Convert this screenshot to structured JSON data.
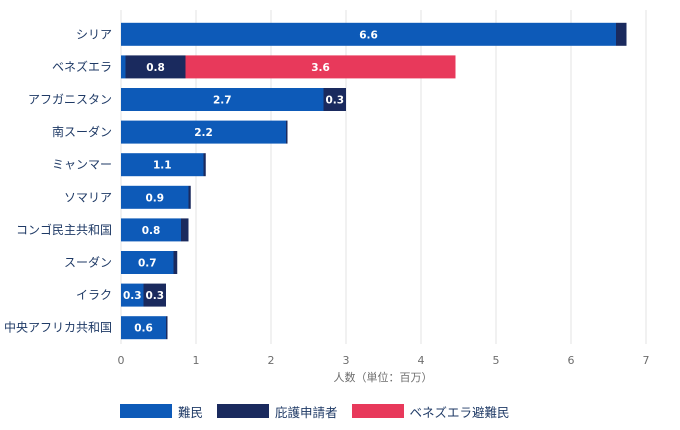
{
  "chart_data": {
    "type": "bar",
    "orientation": "horizontal",
    "stacked": true,
    "categories": [
      "シリア",
      "ベネズエラ",
      "アフガニスタン",
      "南スーダン",
      "ミャンマー",
      "ソマリア",
      "コンゴ民主共和国",
      "スーダン",
      "イラク",
      "中央アフリカ共和国"
    ],
    "series": [
      {
        "name": "難民",
        "color": "#0d5ab8",
        "values": [
          6.6,
          0.06,
          2.7,
          2.2,
          1.1,
          0.9,
          0.8,
          0.7,
          0.3,
          0.6
        ]
      },
      {
        "name": "庇護申請者",
        "color": "#1a2a5e",
        "values": [
          0.14,
          0.8,
          0.3,
          0.02,
          0.03,
          0.03,
          0.1,
          0.05,
          0.3,
          0.02
        ]
      },
      {
        "name": "ベネズエラ避難民",
        "color": "#e8395b",
        "values": [
          0,
          3.6,
          0,
          0,
          0,
          0,
          0,
          0,
          0,
          0
        ]
      }
    ],
    "data_labels": [
      [
        "6.6",
        "",
        ""
      ],
      [
        "",
        "0.8",
        "3.6"
      ],
      [
        "2.7",
        "0.3",
        ""
      ],
      [
        "2.2",
        "",
        ""
      ],
      [
        "1.1",
        "",
        ""
      ],
      [
        "0.9",
        "",
        ""
      ],
      [
        "0.8",
        "",
        ""
      ],
      [
        "0.7",
        "",
        ""
      ],
      [
        "0.3",
        "0.3",
        ""
      ],
      [
        "0.6",
        "",
        ""
      ]
    ],
    "xticks": [
      "0",
      "1",
      "2",
      "3",
      "4",
      "5",
      "6",
      "7"
    ],
    "xlim": [
      0,
      7
    ],
    "xlabel": "人数（単位：百万）",
    "ylabel": "",
    "title": "",
    "grid": true,
    "legend_position": "bottom-left"
  },
  "colors": {
    "refugee": "#0d5ab8",
    "asylum": "#1a2a5e",
    "venezuelan": "#e8395b",
    "grid": "#e3e3e3"
  },
  "legend": {
    "refugee": "難民",
    "asylum": "庇護申請者",
    "venezuelan": "ベネズエラ避難民"
  }
}
